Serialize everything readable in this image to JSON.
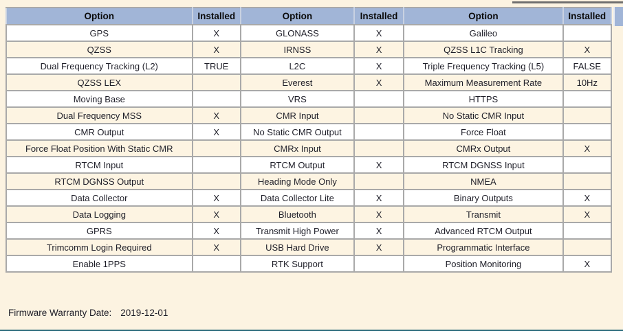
{
  "page": {
    "background_color": "#fcf3e1",
    "header_color": "#a1b5d7",
    "alt_row_color": "#fdf4e2",
    "border_color": "#a9a9a9",
    "bottom_line_color": "#2c6c7c"
  },
  "table": {
    "columns": [
      "Option",
      "Installed",
      "Option",
      "Installed",
      "Option",
      "Installed"
    ],
    "rows": [
      {
        "cells": [
          "GPS",
          "X",
          "GLONASS",
          "X",
          "Galileo",
          ""
        ]
      },
      {
        "cells": [
          "QZSS",
          "X",
          "IRNSS",
          "X",
          "QZSS L1C Tracking",
          "X"
        ]
      },
      {
        "cells": [
          "Dual Frequency Tracking (L2)",
          "TRUE",
          "L2C",
          "X",
          "Triple Frequency Tracking (L5)",
          "FALSE"
        ]
      },
      {
        "cells": [
          "QZSS LEX",
          "",
          "Everest",
          "X",
          "Maximum Measurement Rate",
          "10Hz"
        ]
      },
      {
        "cells": [
          "Moving Base",
          "",
          "VRS",
          "",
          "HTTPS",
          ""
        ]
      },
      {
        "cells": [
          "Dual Frequency MSS",
          "X",
          "CMR Input",
          "",
          "No Static CMR Input",
          ""
        ]
      },
      {
        "cells": [
          "CMR Output",
          "X",
          "No Static CMR Output",
          "",
          "Force Float",
          ""
        ]
      },
      {
        "cells": [
          "Force Float Position With Static CMR",
          "",
          "CMRx Input",
          "",
          "CMRx Output",
          "X"
        ]
      },
      {
        "cells": [
          "RTCM Input",
          "",
          "RTCM Output",
          "X",
          "RTCM DGNSS Input",
          ""
        ]
      },
      {
        "cells": [
          "RTCM DGNSS Output",
          "",
          "Heading Mode Only",
          "",
          "NMEA",
          ""
        ]
      },
      {
        "cells": [
          "Data Collector",
          "X",
          "Data Collector Lite",
          "X",
          "Binary Outputs",
          "X"
        ]
      },
      {
        "cells": [
          "Data Logging",
          "X",
          "Bluetooth",
          "X",
          "Transmit",
          "X"
        ]
      },
      {
        "cells": [
          "GPRS",
          "X",
          "Transmit High Power",
          "X",
          "Advanced RTCM Output",
          ""
        ]
      },
      {
        "cells": [
          "Trimcomm Login Required",
          "X",
          "USB Hard Drive",
          "X",
          "Programmatic Interface",
          ""
        ]
      },
      {
        "cells": [
          "Enable 1PPS",
          "",
          "RTK Support",
          "",
          "Position Monitoring",
          "X"
        ]
      }
    ]
  },
  "footer": {
    "label": "Firmware Warranty Date:",
    "value": "2019-12-01"
  }
}
